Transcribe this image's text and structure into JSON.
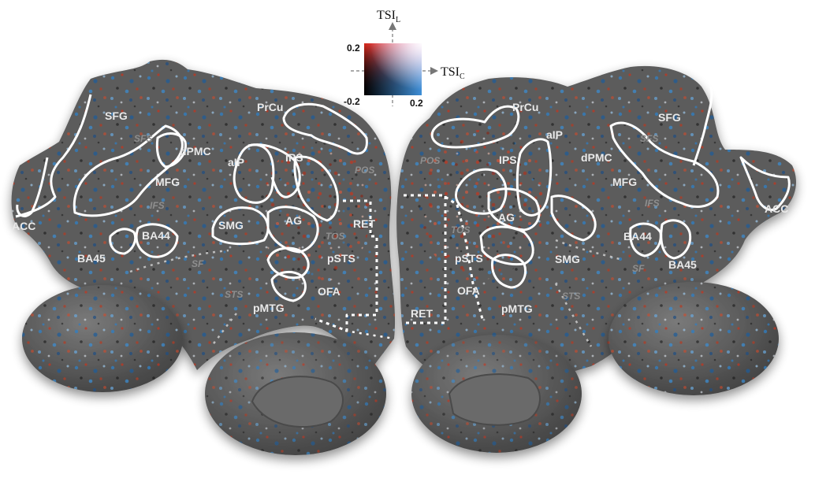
{
  "legend": {
    "y_axis_label": "TSI",
    "y_axis_sub": "L",
    "x_axis_label": "TSI",
    "x_axis_sub": "C",
    "tick_top": "0.2",
    "tick_min": "-0.2",
    "tick_right": "0.2"
  },
  "colors": {
    "background": "#ffffff",
    "cortex": "#5b5b5b",
    "cortex_dark": "#4a4a4a",
    "red": "#c8341c",
    "blue": "#2f7ec4",
    "black": "#111111",
    "outline": "#ffffff"
  },
  "left_hemisphere": {
    "rois": [
      "SFG",
      "dPMC",
      "MFG",
      "ACC",
      "BA44",
      "BA45",
      "PrCu",
      "aIP",
      "IPS",
      "SMG",
      "AG",
      "pSTS",
      "OFA",
      "pMTG",
      "RET"
    ],
    "sulci": [
      "SFS",
      "IFS",
      "SF",
      "POS",
      "TOS",
      "STS"
    ]
  },
  "right_hemisphere": {
    "rois": [
      "PrCu",
      "aIP",
      "dPMC",
      "SFG",
      "IPS",
      "MFG",
      "AG",
      "ACC",
      "BA44",
      "SMG",
      "BA45",
      "pSTS",
      "OFA",
      "pMTG",
      "RET"
    ],
    "sulci": [
      "POS",
      "SFS",
      "IFS",
      "TOS",
      "SF",
      "STS"
    ]
  }
}
